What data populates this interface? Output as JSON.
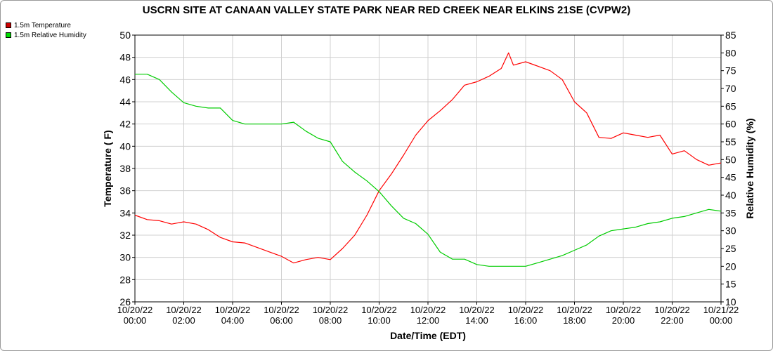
{
  "chart_data": {
    "type": "line",
    "title": "USCRN SITE AT CANAAN VALLEY STATE PARK NEAR RED CREEK NEAR ELKINS 21SE (CVPW2)",
    "xlabel": "Date/Time (EDT)",
    "ylabel_left": "Temperature ( F)",
    "ylabel_right": "Relative Humidity (%)",
    "ylim_left": [
      26,
      50
    ],
    "ylim_right": [
      10,
      85
    ],
    "grid": true,
    "legend_position": "top-left",
    "x_ticks": [
      {
        "date": "10/20/22",
        "time": "00:00",
        "h": 0
      },
      {
        "date": "10/20/22",
        "time": "02:00",
        "h": 2
      },
      {
        "date": "10/20/22",
        "time": "04:00",
        "h": 4
      },
      {
        "date": "10/20/22",
        "time": "06:00",
        "h": 6
      },
      {
        "date": "10/20/22",
        "time": "08:00",
        "h": 8
      },
      {
        "date": "10/20/22",
        "time": "10:00",
        "h": 10
      },
      {
        "date": "10/20/22",
        "time": "12:00",
        "h": 12
      },
      {
        "date": "10/20/22",
        "time": "14:00",
        "h": 14
      },
      {
        "date": "10/20/22",
        "time": "16:00",
        "h": 16
      },
      {
        "date": "10/20/22",
        "time": "18:00",
        "h": 18
      },
      {
        "date": "10/20/22",
        "time": "20:00",
        "h": 20
      },
      {
        "date": "10/20/22",
        "time": "22:00",
        "h": 22
      },
      {
        "date": "10/21/22",
        "time": "00:00",
        "h": 24
      }
    ],
    "y_ticks_left": [
      26,
      28,
      30,
      32,
      34,
      36,
      38,
      40,
      42,
      44,
      46,
      48,
      50
    ],
    "y_ticks_right": [
      10,
      15,
      20,
      25,
      30,
      35,
      40,
      45,
      50,
      55,
      60,
      65,
      70,
      75,
      80,
      85
    ],
    "x_unit": "hours",
    "series": [
      {
        "name": "1.5m Temperature",
        "axis": "left",
        "color": "#ff0000",
        "x": [
          0,
          0.5,
          1,
          1.5,
          2,
          2.5,
          3,
          3.5,
          4,
          4.5,
          5,
          5.5,
          6,
          6.5,
          7,
          7.5,
          8,
          8.5,
          9,
          9.5,
          10,
          10.5,
          11,
          11.5,
          12,
          12.5,
          13,
          13.5,
          14,
          14.5,
          15,
          15.3,
          15.5,
          16,
          16.5,
          17,
          17.5,
          18,
          18.5,
          19,
          19.5,
          20,
          20.5,
          21,
          21.5,
          22,
          22.5,
          23,
          23.5,
          24
        ],
        "y": [
          33.8,
          33.4,
          33.3,
          33.0,
          33.2,
          33.0,
          32.5,
          31.8,
          31.4,
          31.3,
          30.9,
          30.5,
          30.1,
          29.5,
          29.8,
          30.0,
          29.8,
          30.8,
          32.0,
          33.8,
          36.0,
          37.5,
          39.2,
          41.0,
          42.3,
          43.2,
          44.2,
          45.5,
          45.8,
          46.3,
          47.0,
          48.4,
          47.3,
          47.6,
          47.2,
          46.8,
          46.0,
          44.0,
          43.0,
          40.8,
          40.7,
          41.2,
          41.0,
          40.8,
          41.0,
          39.3,
          39.6,
          38.8,
          38.3,
          38.5
        ]
      },
      {
        "name": "1.5m Relative Humidity",
        "axis": "right",
        "color": "#00cc00",
        "x": [
          0,
          0.5,
          1,
          1.5,
          2,
          2.5,
          3,
          3.5,
          4,
          4.5,
          5,
          5.5,
          6,
          6.5,
          7,
          7.5,
          8,
          8.5,
          9,
          9.5,
          10,
          10.5,
          11,
          11.5,
          12,
          12.5,
          13,
          13.5,
          14,
          14.5,
          15,
          15.5,
          16,
          16.5,
          17,
          17.5,
          18,
          18.5,
          19,
          19.5,
          20,
          20.5,
          21,
          21.5,
          22,
          22.5,
          23,
          23.5,
          24
        ],
        "y": [
          74.0,
          74.0,
          72.5,
          69.0,
          66.0,
          65.0,
          64.5,
          64.5,
          61.0,
          60.0,
          60.0,
          60.0,
          60.0,
          60.5,
          58.0,
          56.0,
          55.0,
          49.5,
          46.5,
          44.0,
          41.0,
          37.0,
          33.5,
          32.0,
          29.0,
          24.0,
          22.0,
          22.0,
          20.5,
          20.0,
          20.0,
          20.0,
          20.0,
          21.0,
          22.0,
          23.0,
          24.5,
          26.0,
          28.5,
          30.0,
          30.5,
          31.0,
          32.0,
          32.5,
          33.5,
          34.0,
          35.0,
          36.0,
          35.5
        ]
      }
    ]
  }
}
